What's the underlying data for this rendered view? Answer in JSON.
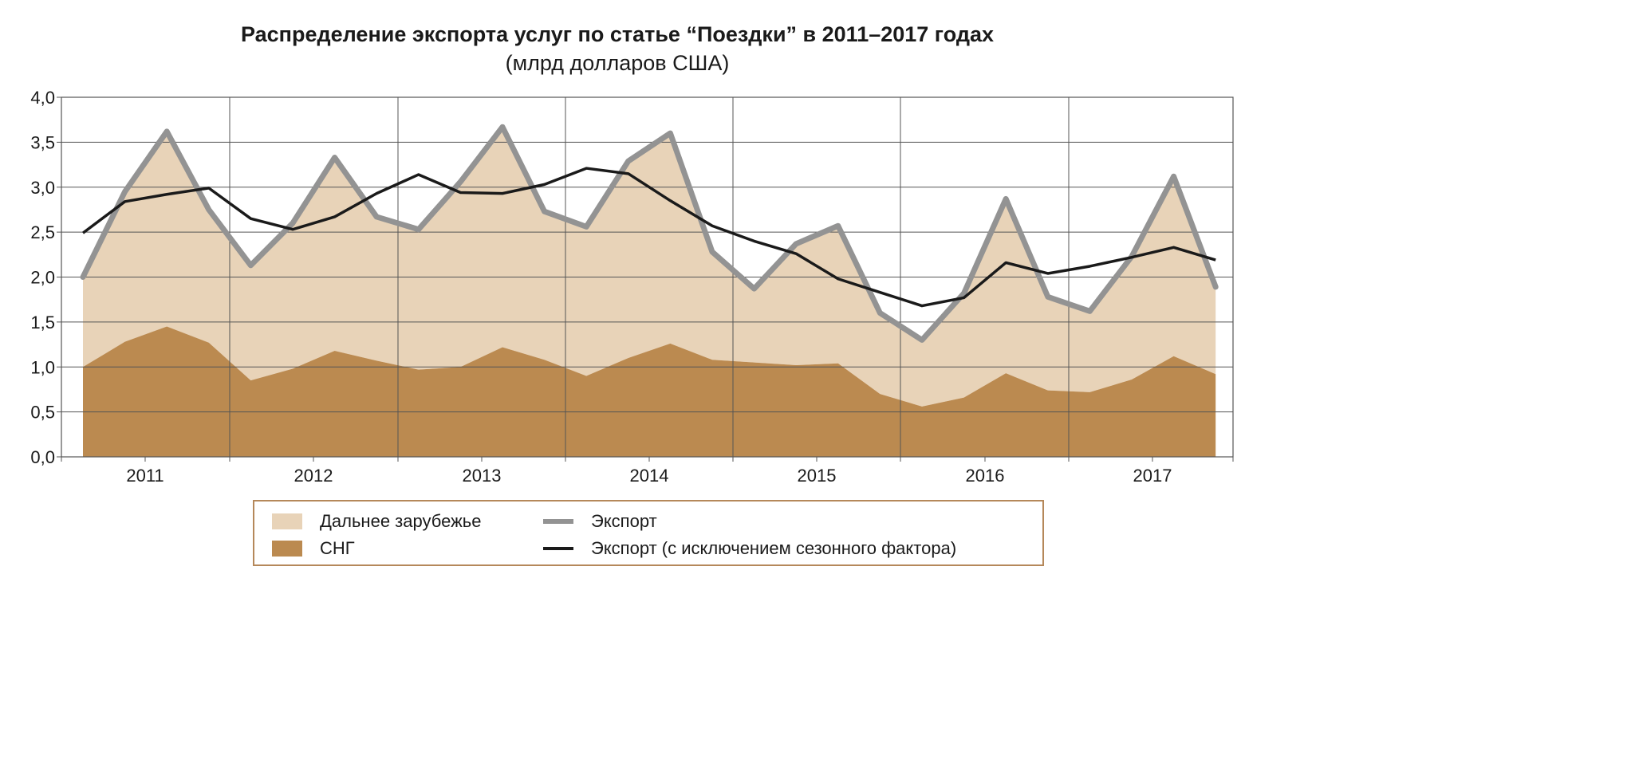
{
  "chart_data": {
    "type": "area",
    "title": "Распределение экспорта услуг по статье “Поездки” в 2011–2017 годах",
    "subtitle": "(млрд долларов США)",
    "xlabel": "",
    "ylabel": "",
    "ylim": [
      0,
      4
    ],
    "y_ticks": [
      "0,0",
      "0,5",
      "1,0",
      "1,5",
      "2,0",
      "2,5",
      "3,0",
      "3,5",
      "4,0"
    ],
    "year_labels": [
      "2011",
      "2012",
      "2013",
      "2014",
      "2015",
      "2016",
      "2017"
    ],
    "x": [
      "2011 Q1",
      "2011 Q2",
      "2011 Q3",
      "2011 Q4",
      "2012 Q1",
      "2012 Q2",
      "2012 Q3",
      "2012 Q4",
      "2013 Q1",
      "2013 Q2",
      "2013 Q3",
      "2013 Q4",
      "2014 Q1",
      "2014 Q2",
      "2014 Q3",
      "2014 Q4",
      "2015 Q1",
      "2015 Q2",
      "2015 Q3",
      "2015 Q4",
      "2016 Q1",
      "2016 Q2",
      "2016 Q3",
      "2016 Q4",
      "2017 Q1",
      "2017 Q2",
      "2017 Q3",
      "2017 Q4"
    ],
    "grid": true,
    "legend_position": "bottom",
    "series": [
      {
        "name": "Дальнее зарубежье",
        "kind": "stacked-area",
        "color": "#e8d3b8",
        "values": [
          1.0,
          1.67,
          2.17,
          1.48,
          1.28,
          1.62,
          2.15,
          1.6,
          1.56,
          2.06,
          2.45,
          1.65,
          1.66,
          2.19,
          2.34,
          1.2,
          0.82,
          1.35,
          1.53,
          0.9,
          0.74,
          1.16,
          1.94,
          1.04,
          0.9,
          1.37,
          2.0,
          0.97
        ]
      },
      {
        "name": "СНГ",
        "kind": "stacked-area",
        "color": "#bb8a50",
        "values": [
          1.0,
          1.28,
          1.45,
          1.27,
          0.85,
          0.98,
          1.18,
          1.07,
          0.97,
          1.0,
          1.22,
          1.08,
          0.9,
          1.1,
          1.26,
          1.08,
          1.05,
          1.02,
          1.04,
          0.7,
          0.56,
          0.66,
          0.93,
          0.74,
          0.72,
          0.86,
          1.12,
          0.92
        ]
      },
      {
        "name": "Экспорт",
        "kind": "line",
        "color": "#939393",
        "values": [
          2.0,
          2.95,
          3.62,
          2.75,
          2.13,
          2.6,
          3.33,
          2.67,
          2.53,
          3.06,
          3.67,
          2.73,
          2.56,
          3.29,
          3.6,
          2.28,
          1.87,
          2.37,
          2.57,
          1.6,
          1.3,
          1.82,
          2.87,
          1.78,
          1.62,
          2.23,
          3.12,
          1.89
        ]
      },
      {
        "name": "Экспорт (с исключением сезонного фактора)",
        "kind": "line",
        "color": "#1a1a1a",
        "values": [
          2.49,
          2.84,
          2.92,
          2.99,
          2.65,
          2.53,
          2.67,
          2.93,
          3.14,
          2.94,
          2.93,
          3.03,
          3.21,
          3.15,
          2.85,
          2.57,
          2.4,
          2.26,
          1.98,
          1.83,
          1.68,
          1.77,
          2.16,
          2.04,
          2.12,
          2.22,
          2.33,
          2.19
        ]
      }
    ]
  }
}
